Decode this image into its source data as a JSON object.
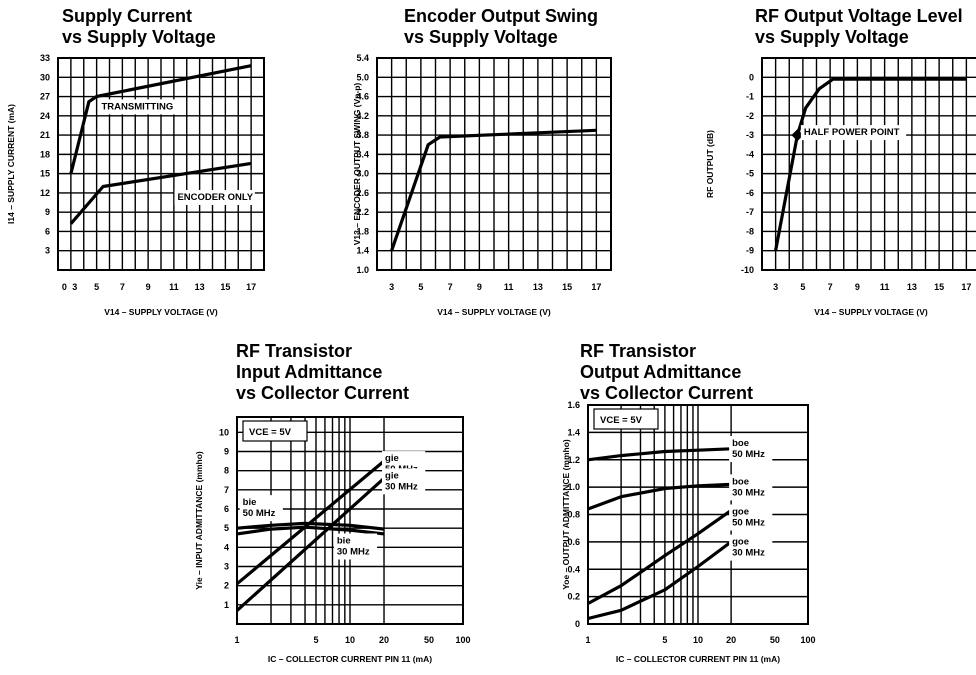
{
  "chart_data": [
    {
      "type": "line",
      "title": [
        "Supply Current",
        "vs Supply Voltage"
      ],
      "xlabel": "V14 – SUPPLY VOLTAGE (V)",
      "ylabel": "I14 – SUPPLY CURRENT (mA)",
      "x_ticks": [
        "0",
        "3",
        "5",
        "7",
        "9",
        "11",
        "13",
        "15",
        "17"
      ],
      "y_ticks": [
        "3",
        "6",
        "9",
        "12",
        "15",
        "18",
        "21",
        "24",
        "27",
        "30",
        "33"
      ],
      "xlim": [
        2,
        18
      ],
      "ylim": [
        0,
        33
      ],
      "grid": true,
      "series": [
        {
          "name": "TRANSMITTING",
          "x": [
            3,
            4.4,
            5,
            17
          ],
          "y": [
            15,
            26.2,
            27,
            31.8
          ]
        },
        {
          "name": "ENCODER ONLY",
          "x": [
            3,
            5.5,
            17
          ],
          "y": [
            7.2,
            13,
            16.6
          ]
        }
      ],
      "annotations": [
        {
          "text": "TRANSMITTING",
          "x": 5.3,
          "y": 25
        },
        {
          "text": "ENCODER ONLY",
          "x": 11.2,
          "y": 10.9
        }
      ]
    },
    {
      "type": "line",
      "title": [
        "Encoder Output Swing",
        "vs Supply Voltage"
      ],
      "xlabel": "V14 – SUPPLY VOLTAGE (V)",
      "ylabel": "V13 – ENCODER OUTPUT SWING (Vp-p)",
      "x_ticks": [
        "3",
        "5",
        "7",
        "9",
        "11",
        "13",
        "15",
        "17"
      ],
      "y_ticks": [
        "1.0",
        "1.4",
        "1.8",
        "2.2",
        "2.6",
        "3.0",
        "3.4",
        "3.8",
        "4.2",
        "4.6",
        "5.0",
        "5.4"
      ],
      "xlim": [
        2,
        18
      ],
      "ylim": [
        1.0,
        5.4
      ],
      "grid": true,
      "series": [
        {
          "x": [
            3,
            5.5,
            6.3,
            17
          ],
          "y": [
            1.4,
            3.6,
            3.76,
            3.9
          ]
        }
      ]
    },
    {
      "type": "line",
      "title": [
        "RF Output Voltage Level",
        "vs Supply Voltage"
      ],
      "xlabel": "V14 – SUPPLY VOLTAGE (V)",
      "ylabel": "RF OUTPUT (dB)",
      "x_ticks": [
        "3",
        "5",
        "7",
        "9",
        "11",
        "13",
        "15",
        "17"
      ],
      "y_ticks": [
        "0",
        "-1",
        "-2",
        "-3",
        "-4",
        "-5",
        "-6",
        "-7",
        "-8",
        "-9",
        "-10"
      ],
      "xlim": [
        2,
        18
      ],
      "ylim": [
        -10,
        1
      ],
      "grid": true,
      "series": [
        {
          "x": [
            3,
            4.6,
            5.2,
            6.2,
            7.2,
            17
          ],
          "y": [
            -9,
            -3,
            -1.6,
            -0.6,
            -0.1,
            -0.1
          ]
        }
      ],
      "marker": {
        "x": 4.6,
        "y": -3
      },
      "annotations": [
        {
          "text": "HALF POWER POINT",
          "x": 5.0,
          "y": -3
        }
      ]
    },
    {
      "type": "line",
      "x_scale": "log",
      "title": [
        "RF Transistor",
        "Input Admittance",
        "vs Collector Current"
      ],
      "xlabel": "IC – COLLECTOR CURRENT PIN 11 (mA)",
      "ylabel": "Yie – INPUT ADMITTANCE (mmho)",
      "x_ticks": [
        "1",
        "5",
        "10",
        "20",
        "50",
        "100"
      ],
      "y_ticks": [
        "1",
        "2",
        "3",
        "4",
        "5",
        "6",
        "7",
        "8",
        "9",
        "10"
      ],
      "xlim": [
        1,
        100
      ],
      "ylim": [
        0,
        10.8
      ],
      "grid": true,
      "series": [
        {
          "name": "gie 50 MHz",
          "x": [
            1,
            20
          ],
          "y": [
            2.1,
            8.5
          ]
        },
        {
          "name": "gie 30 MHz",
          "x": [
            1,
            20
          ],
          "y": [
            0.7,
            7.6
          ]
        },
        {
          "name": "bie 50 MHz",
          "x": [
            1,
            2,
            4,
            10,
            20
          ],
          "y": [
            5.0,
            5.15,
            5.25,
            5.15,
            4.95
          ]
        },
        {
          "name": "bie 30 MHz",
          "x": [
            1,
            2,
            4,
            10,
            20
          ],
          "y": [
            4.7,
            4.95,
            5.05,
            4.9,
            4.7
          ]
        }
      ],
      "box_label": "VCE = 5V",
      "annotations": [
        {
          "text": [
            "gie",
            "50 MHz"
          ],
          "x": 20,
          "y": 8.5
        },
        {
          "text": [
            "gie",
            "30 MHz"
          ],
          "x": 20,
          "y": 7.6
        },
        {
          "text": [
            "bie",
            "50 MHz"
          ],
          "x": 1.1,
          "y": 6.2
        },
        {
          "text": [
            "bie",
            "30 MHz"
          ],
          "x": 7.5,
          "y": 4.2
        }
      ]
    },
    {
      "type": "line",
      "x_scale": "log",
      "title": [
        "RF Transistor",
        "Output Admittance",
        "vs Collector Current"
      ],
      "xlabel": "IC – COLLECTOR CURRENT PIN 11 (mA)",
      "ylabel": "Yoe – OUTPUT ADMITTANCE (mmho)",
      "x_ticks": [
        "1",
        "5",
        "10",
        "20",
        "50",
        "100"
      ],
      "y_ticks": [
        "0",
        "0.2",
        "0.4",
        "0.6",
        "0.8",
        "1.0",
        "1.2",
        "1.4",
        "1.6"
      ],
      "xlim": [
        1,
        100
      ],
      "ylim": [
        0,
        1.6
      ],
      "grid": true,
      "series": [
        {
          "name": "boe 50 MHz",
          "x": [
            1,
            2,
            5,
            10,
            20
          ],
          "y": [
            1.2,
            1.23,
            1.26,
            1.27,
            1.28
          ]
        },
        {
          "name": "boe 30 MHz",
          "x": [
            1,
            2,
            5,
            10,
            20
          ],
          "y": [
            0.84,
            0.93,
            0.99,
            1.01,
            1.02
          ]
        },
        {
          "name": "goe 50 MHz",
          "x": [
            1,
            2,
            5,
            10,
            20
          ],
          "y": [
            0.15,
            0.28,
            0.5,
            0.66,
            0.83
          ]
        },
        {
          "name": "goe 30 MHz",
          "x": [
            1,
            2,
            5,
            10,
            20
          ],
          "y": [
            0.04,
            0.1,
            0.25,
            0.42,
            0.6
          ]
        }
      ],
      "box_label": "VCE = 5V",
      "annotations": [
        {
          "text": [
            "boe",
            "50 MHz"
          ],
          "x": 20,
          "y": 1.3
        },
        {
          "text": [
            "boe",
            "30 MHz"
          ],
          "x": 20,
          "y": 1.02
        },
        {
          "text": [
            "goe",
            "50 MHz"
          ],
          "x": 20,
          "y": 0.8
        },
        {
          "text": [
            "goe",
            "30 MHz"
          ],
          "x": 20,
          "y": 0.58
        }
      ]
    }
  ]
}
